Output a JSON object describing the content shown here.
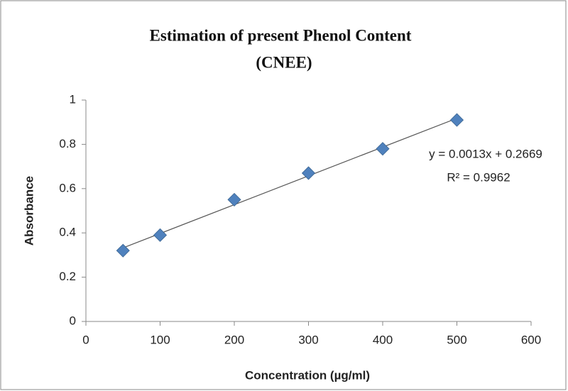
{
  "chart_data": {
    "type": "scatter",
    "title": [
      "Estimation of present Phenol Content",
      "(CNEE)"
    ],
    "x_label": "Concentration (µg/ml)",
    "y_label": "Absorbance",
    "x": [
      50,
      100,
      200,
      300,
      400,
      500
    ],
    "series": [
      {
        "name": "Absorbance",
        "color": "#4f81bd",
        "values": [
          0.32,
          0.39,
          0.55,
          0.67,
          0.78,
          0.91
        ]
      }
    ],
    "trendline": {
      "equation": "y = 0.0013x + 0.2669",
      "r_squared": "R² = 0.9962",
      "color": "#555555"
    },
    "xlim": [
      0,
      600
    ],
    "xticks": [
      0,
      100,
      200,
      300,
      400,
      500,
      600
    ],
    "ylim": [
      0,
      1
    ],
    "yticks": [
      0,
      0.2,
      0.4,
      0.6,
      0.8,
      1
    ],
    "grid": false
  }
}
